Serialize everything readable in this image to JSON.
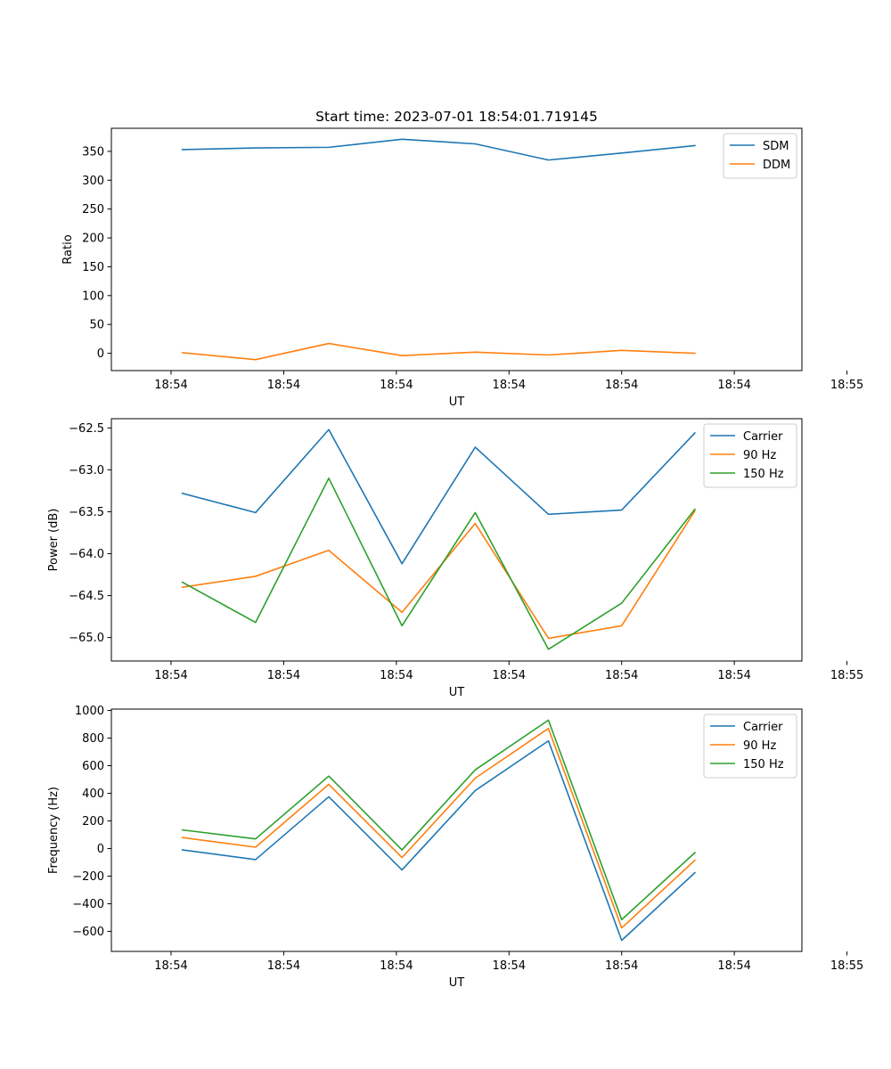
{
  "chart_data": [
    {
      "type": "line",
      "title": "Start time: 2023-07-01 18:54:01.719145",
      "xlabel": "UT",
      "ylabel": "Ratio",
      "xlim": [
        -0.53,
        5.6
      ],
      "x": [
        0.1,
        0.75,
        1.4,
        2.05,
        2.7,
        3.35,
        4.0,
        4.65
      ],
      "x_ticks": [
        0,
        1,
        2,
        3,
        4,
        5,
        6
      ],
      "x_tick_labels": [
        "18:54",
        "18:54",
        "18:54",
        "18:54",
        "18:54",
        "18:54",
        "18:55"
      ],
      "ylim": [
        -30,
        390
      ],
      "y_ticks": [
        0,
        50,
        100,
        150,
        200,
        250,
        300,
        350
      ],
      "y_tick_labels": [
        "0",
        "50",
        "100",
        "150",
        "200",
        "250",
        "300",
        "350"
      ],
      "legend": "top-right",
      "series": [
        {
          "name": "SDM",
          "color": "#1f77b4",
          "values": [
            353,
            356,
            357,
            371,
            363,
            335,
            347,
            360
          ]
        },
        {
          "name": "DDM",
          "color": "#ff7f0e",
          "values": [
            1,
            -11,
            17,
            -4,
            2,
            -3,
            5,
            0
          ]
        }
      ]
    },
    {
      "type": "line",
      "title": "",
      "xlabel": "UT",
      "ylabel": "Power (dB)",
      "xlim": [
        -0.53,
        5.6
      ],
      "x": [
        0.1,
        0.75,
        1.4,
        2.05,
        2.7,
        3.35,
        4.0,
        4.65
      ],
      "x_ticks": [
        0,
        1,
        2,
        3,
        4,
        5,
        6
      ],
      "x_tick_labels": [
        "18:54",
        "18:54",
        "18:54",
        "18:54",
        "18:54",
        "18:54",
        "18:55"
      ],
      "ylim": [
        -65.28,
        -62.39
      ],
      "y_ticks": [
        -65.0,
        -64.5,
        -64.0,
        -63.5,
        -63.0,
        -62.5
      ],
      "y_tick_labels": [
        "−65.0",
        "−64.5",
        "−64.0",
        "−63.5",
        "−63.0",
        "−62.5"
      ],
      "legend": "top-right",
      "series": [
        {
          "name": "Carrier",
          "color": "#1f77b4",
          "values": [
            -63.28,
            -63.51,
            -62.52,
            -64.12,
            -62.73,
            -63.53,
            -63.48,
            -62.56
          ]
        },
        {
          "name": "90 Hz",
          "color": "#ff7f0e",
          "values": [
            -64.4,
            -64.27,
            -63.96,
            -64.7,
            -63.64,
            -65.01,
            -64.86,
            -63.49
          ]
        },
        {
          "name": "150 Hz",
          "color": "#2ca02c",
          "values": [
            -64.34,
            -64.82,
            -63.1,
            -64.86,
            -63.51,
            -65.14,
            -64.59,
            -63.47
          ]
        }
      ]
    },
    {
      "type": "line",
      "title": "",
      "xlabel": "UT",
      "ylabel": "Frequency (Hz)",
      "xlim": [
        -0.53,
        5.6
      ],
      "x": [
        0.1,
        0.75,
        1.4,
        2.05,
        2.7,
        3.35,
        4.0,
        4.65
      ],
      "x_ticks": [
        0,
        1,
        2,
        3,
        4,
        5,
        6
      ],
      "x_tick_labels": [
        "18:54",
        "18:54",
        "18:54",
        "18:54",
        "18:54",
        "18:54",
        "18:55"
      ],
      "ylim": [
        -745,
        1010
      ],
      "y_ticks": [
        -600,
        -400,
        -200,
        0,
        200,
        400,
        600,
        800,
        1000
      ],
      "y_tick_labels": [
        "−600",
        "−400",
        "−200",
        "0",
        "200",
        "400",
        "600",
        "800",
        "1000"
      ],
      "legend": "top-right",
      "series": [
        {
          "name": "Carrier",
          "color": "#1f77b4",
          "values": [
            -10,
            -80,
            375,
            -155,
            420,
            780,
            -665,
            -175
          ]
        },
        {
          "name": "90 Hz",
          "color": "#ff7f0e",
          "values": [
            80,
            10,
            465,
            -65,
            510,
            870,
            -575,
            -85
          ]
        },
        {
          "name": "150 Hz",
          "color": "#2ca02c",
          "values": [
            135,
            70,
            525,
            -10,
            570,
            930,
            -515,
            -30
          ]
        }
      ]
    }
  ]
}
